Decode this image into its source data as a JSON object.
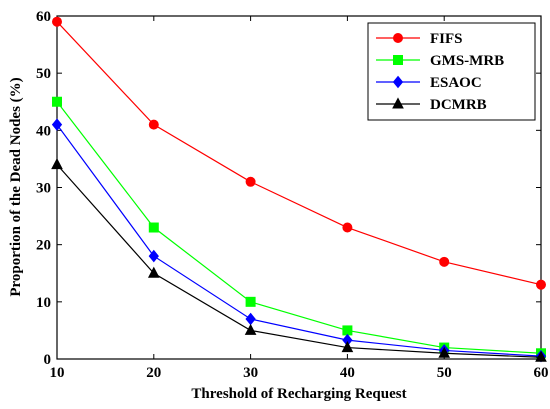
{
  "chart_data": {
    "type": "line",
    "xlabel": "Threshold of Recharging Request",
    "ylabel": "Proportion of the Dead Nodes (%)",
    "x": [
      10,
      20,
      30,
      40,
      50,
      60
    ],
    "xlim": [
      10,
      60
    ],
    "ylim": [
      0,
      60
    ],
    "xticks": [
      10,
      20,
      30,
      40,
      50,
      60
    ],
    "yticks": [
      0,
      10,
      20,
      30,
      40,
      50,
      60
    ],
    "grid": false,
    "legend_position": "top-right",
    "series": [
      {
        "name": "FIFS",
        "values": [
          59,
          41,
          31,
          23,
          17,
          13
        ],
        "color": "#ff0000",
        "marker": "circle"
      },
      {
        "name": "GMS-MRB",
        "values": [
          45,
          23,
          10,
          5,
          2,
          1
        ],
        "color": "#00ff00",
        "marker": "square"
      },
      {
        "name": "ESAOC",
        "values": [
          41,
          18,
          7,
          3.3,
          1.5,
          0.5
        ],
        "color": "#0000ff",
        "marker": "diamond"
      },
      {
        "name": "DCMRB",
        "values": [
          34,
          15,
          5,
          2,
          1,
          0.3
        ],
        "color": "#000000",
        "marker": "triangle"
      }
    ]
  }
}
